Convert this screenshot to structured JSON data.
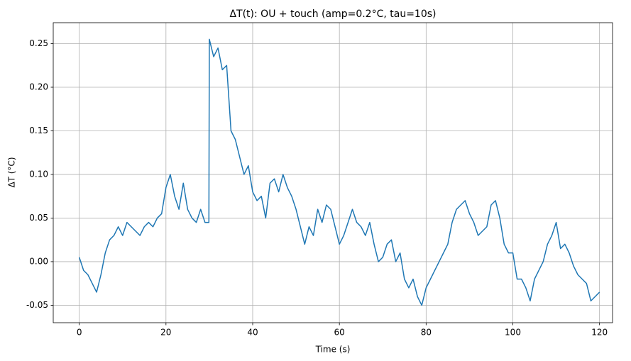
{
  "chart_data": {
    "type": "line",
    "title": "ΔT(t): OU + touch (amp=0.2°C, tau=10s)",
    "x_label": "Time (s)",
    "y_label": "ΔT (°C)",
    "grid": true,
    "xlim": [
      -6,
      123
    ],
    "ylim": [
      -0.07,
      0.274
    ],
    "xticks": [
      0,
      20,
      40,
      60,
      80,
      100,
      120
    ],
    "yticks": [
      -0.05,
      {
        "value": 0,
        "label": "0.00"
      },
      0.05,
      {
        "value": 0.1,
        "label": "0.10"
      },
      0.15,
      {
        "value": 0.2,
        "label": "0.20"
      },
      0.25
    ],
    "x": [
      0,
      1,
      2,
      3,
      4,
      5,
      6,
      7,
      8,
      9,
      10,
      11,
      12,
      13,
      14,
      15,
      16,
      17,
      18,
      19,
      20,
      21,
      22,
      23,
      24,
      25,
      26,
      27,
      28,
      29,
      29.9,
      30,
      31,
      32,
      33,
      34,
      35,
      36,
      37,
      38,
      39,
      40,
      41,
      42,
      43,
      44,
      45,
      46,
      47,
      48,
      49,
      50,
      51,
      52,
      53,
      54,
      55,
      56,
      57,
      58,
      59,
      60,
      61,
      62,
      63,
      64,
      65,
      66,
      67,
      68,
      69,
      70,
      71,
      72,
      73,
      74,
      75,
      76,
      77,
      78,
      79,
      80,
      81,
      82,
      83,
      84,
      85,
      86,
      87,
      88,
      89,
      90,
      91,
      92,
      93,
      94,
      95,
      96,
      97,
      98,
      99,
      100,
      101,
      102,
      103,
      104,
      105,
      106,
      107,
      108,
      109,
      110,
      111,
      112,
      113,
      114,
      115,
      116,
      117,
      118,
      119,
      120
    ],
    "series": [
      {
        "name": "ΔT",
        "color": "#1f77b4",
        "values": [
          0.005,
          -0.01,
          -0.015,
          -0.025,
          -0.035,
          -0.015,
          0.01,
          0.025,
          0.03,
          0.04,
          0.03,
          0.045,
          0.04,
          0.035,
          0.03,
          0.04,
          0.045,
          0.04,
          0.05,
          0.055,
          0.085,
          0.1,
          0.075,
          0.06,
          0.09,
          0.06,
          0.05,
          0.045,
          0.06,
          0.045,
          0.045,
          0.255,
          0.235,
          0.245,
          0.22,
          0.225,
          0.15,
          0.14,
          0.12,
          0.1,
          0.11,
          0.08,
          0.07,
          0.075,
          0.05,
          0.09,
          0.095,
          0.08,
          0.1,
          0.085,
          0.075,
          0.06,
          0.04,
          0.02,
          0.04,
          0.03,
          0.06,
          0.045,
          0.065,
          0.06,
          0.04,
          0.02,
          0.03,
          0.045,
          0.06,
          0.045,
          0.04,
          0.03,
          0.045,
          0.02,
          0.0,
          0.005,
          0.02,
          0.025,
          0.0,
          0.01,
          -0.02,
          -0.03,
          -0.02,
          -0.04,
          -0.05,
          -0.03,
          -0.02,
          -0.01,
          0.0,
          0.01,
          0.02,
          0.045,
          0.06,
          0.065,
          0.07,
          0.055,
          0.045,
          0.03,
          0.035,
          0.04,
          0.065,
          0.07,
          0.05,
          0.02,
          0.01,
          0.01,
          -0.02,
          -0.02,
          -0.03,
          -0.045,
          -0.02,
          -0.01,
          0.0,
          0.02,
          0.03,
          0.045,
          0.015,
          0.02,
          0.01,
          -0.005,
          -0.015,
          -0.02,
          -0.025,
          -0.045,
          -0.04,
          -0.035
        ]
      }
    ]
  }
}
